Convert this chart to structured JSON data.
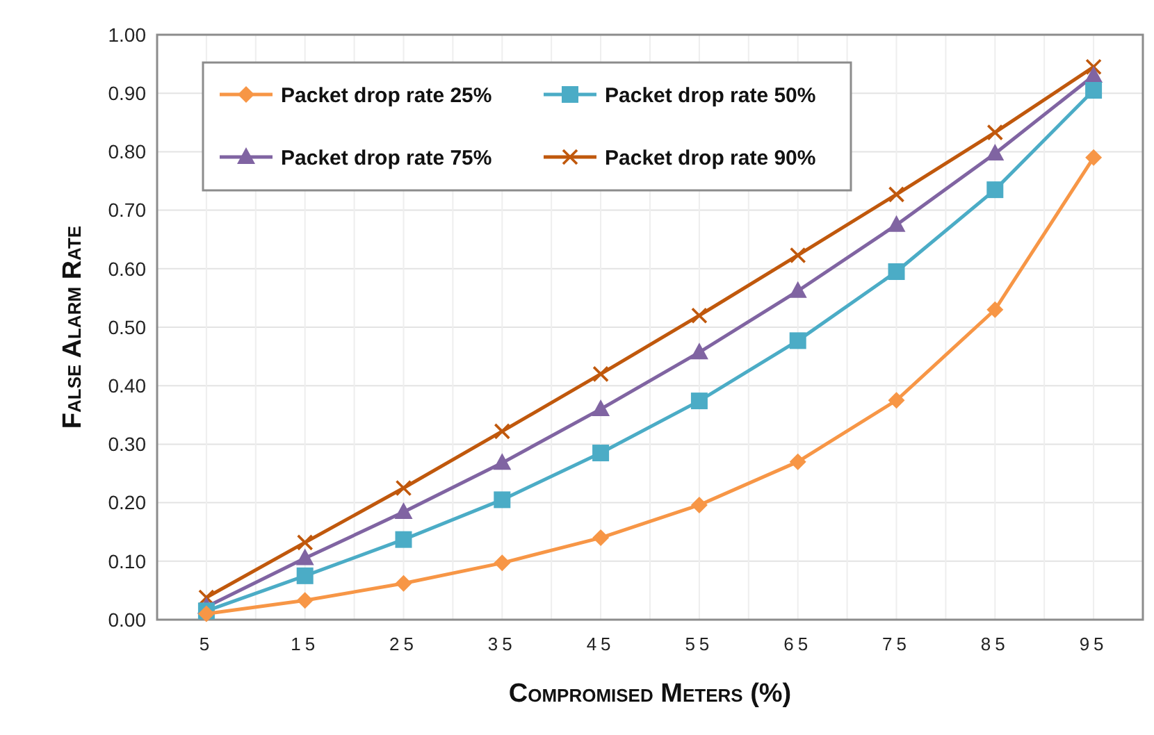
{
  "chart_data": {
    "type": "line",
    "xlabel": "Compromised Meters (%)",
    "ylabel": "False Alarm Rate",
    "categories": [
      "5",
      "15",
      "25",
      "35",
      "45",
      "55",
      "65",
      "75",
      "85",
      "95"
    ],
    "series": [
      {
        "name": "Packet drop rate 25%",
        "color": "#f79646",
        "marker": "diamond",
        "values": [
          0.01,
          0.033,
          0.062,
          0.097,
          0.14,
          0.196,
          0.27,
          0.375,
          0.53,
          0.79
        ]
      },
      {
        "name": "Packet drop rate 50%",
        "color": "#4bacc6",
        "marker": "square",
        "values": [
          0.015,
          0.075,
          0.137,
          0.205,
          0.285,
          0.374,
          0.477,
          0.595,
          0.735,
          0.905
        ]
      },
      {
        "name": "Packet drop rate 75%",
        "color": "#8064a2",
        "marker": "triangle",
        "values": [
          0.022,
          0.105,
          0.184,
          0.268,
          0.36,
          0.457,
          0.562,
          0.675,
          0.797,
          0.93
        ]
      },
      {
        "name": "Packet drop rate 90%",
        "color": "#c0580c",
        "marker": "cross",
        "values": [
          0.038,
          0.132,
          0.225,
          0.322,
          0.42,
          0.52,
          0.623,
          0.727,
          0.833,
          0.945
        ]
      }
    ],
    "ylim": [
      0,
      1
    ],
    "yticks": [
      {
        "value": 0,
        "label": "0.00"
      },
      {
        "value": 0.1,
        "label": "0.10"
      },
      {
        "value": 0.2,
        "label": "0.20"
      },
      {
        "value": 0.3,
        "label": "0.30"
      },
      {
        "value": 0.4,
        "label": "0.40"
      },
      {
        "value": 0.5,
        "label": "0.50"
      },
      {
        "value": 0.6,
        "label": "0.60"
      },
      {
        "value": 0.7,
        "label": "0.70"
      },
      {
        "value": 0.8,
        "label": "0.80"
      },
      {
        "value": 0.9,
        "label": "0.90"
      },
      {
        "value": 1,
        "label": "1.00"
      }
    ],
    "grid": true,
    "legend": "top",
    "line_style": "solid"
  }
}
